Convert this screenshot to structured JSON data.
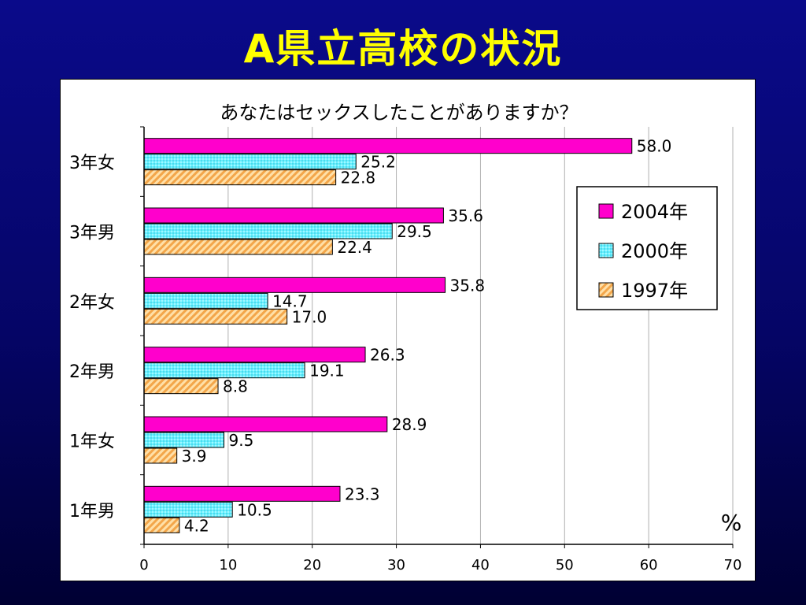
{
  "slide": {
    "title": "A県立高校の状況"
  },
  "colors": {
    "background": "#050566",
    "title": "#ffff00",
    "bar_2004": "#ff00cc",
    "bar_2000": "#66f0ff",
    "bar_1997": "#ffc880"
  },
  "chart_data": {
    "type": "bar",
    "orientation": "horizontal",
    "title": "あなたはセックスしたことがありますか？",
    "unit_label": "%",
    "categories": [
      "3年女",
      "3年男",
      "2年女",
      "2年男",
      "1年女",
      "1年男"
    ],
    "series": [
      {
        "name": "2004年",
        "values": [
          58.0,
          35.6,
          35.8,
          26.3,
          28.9,
          23.3
        ],
        "color": "#ff00cc",
        "pattern": "solid"
      },
      {
        "name": "2000年",
        "values": [
          25.2,
          29.5,
          14.7,
          19.1,
          9.5,
          10.5
        ],
        "color": "#66f0ff",
        "pattern": "dots"
      },
      {
        "name": "1997年",
        "values": [
          22.8,
          22.4,
          17.0,
          8.8,
          3.9,
          4.2
        ],
        "color": "#ffc880",
        "pattern": "diagonal"
      }
    ],
    "xlim": [
      0,
      70
    ],
    "xticks": [
      0,
      10,
      20,
      30,
      40,
      50,
      60,
      70
    ],
    "grid": true,
    "legend_position": "right"
  }
}
